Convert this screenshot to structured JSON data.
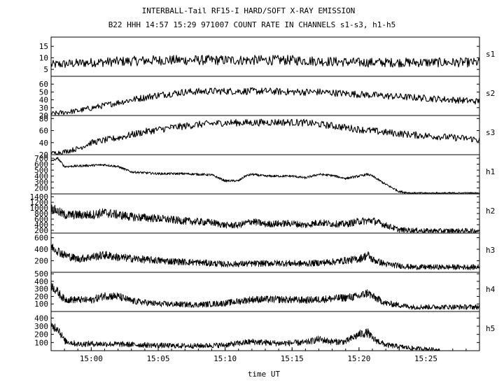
{
  "chart_data": {
    "type": "line",
    "title": "INTERBALL-Tail RF15-I HARD/SOFT X-RAY EMISSION",
    "subtitle": "B22 HHH 14:57 15:29 971007  COUNT RATE IN CHANNELS s1-s3, h1-h5",
    "xlabel": "time UT",
    "x_ticks": [
      "15:00",
      "15:05",
      "15:10",
      "15:15",
      "15:20",
      "15:25"
    ],
    "x_range": [
      "14:57",
      "15:29"
    ],
    "grid": false,
    "legend": "none",
    "panels": [
      {
        "name": "s1",
        "ylim": [
          2,
          19
        ],
        "yticks": [
          "5",
          "10",
          "15"
        ],
        "points": [
          [
            "14:57",
            7
          ],
          [
            "15:00",
            8
          ],
          [
            "15:05",
            9
          ],
          [
            "15:10",
            9
          ],
          [
            "15:15",
            9
          ],
          [
            "15:20",
            8
          ],
          [
            "15:25",
            8
          ],
          [
            "15:29",
            8
          ]
        ]
      },
      {
        "name": "s2",
        "ylim": [
          20,
          70
        ],
        "yticks": [
          "20",
          "30",
          "40",
          "50",
          "60"
        ],
        "points": [
          [
            "14:57",
            22
          ],
          [
            "14:59",
            26
          ],
          [
            "15:01",
            33
          ],
          [
            "15:03",
            40
          ],
          [
            "15:05",
            46
          ],
          [
            "15:07",
            50
          ],
          [
            "15:09",
            51
          ],
          [
            "15:11",
            51
          ],
          [
            "15:13",
            51
          ],
          [
            "15:15",
            50
          ],
          [
            "15:17",
            50
          ],
          [
            "15:19",
            48
          ],
          [
            "15:21",
            46
          ],
          [
            "15:23",
            44
          ],
          [
            "15:25",
            42
          ],
          [
            "15:27",
            40
          ],
          [
            "15:29",
            38
          ]
        ]
      },
      {
        "name": "s3",
        "ylim": [
          20,
          85
        ],
        "yticks": [
          "20",
          "40",
          "60",
          "80"
        ],
        "points": [
          [
            "14:57",
            22
          ],
          [
            "14:58",
            25
          ],
          [
            "14:59",
            30
          ],
          [
            "15:00",
            40
          ],
          [
            "15:02",
            48
          ],
          [
            "15:04",
            58
          ],
          [
            "15:06",
            65
          ],
          [
            "15:08",
            70
          ],
          [
            "15:10",
            73
          ],
          [
            "15:12",
            73
          ],
          [
            "15:14",
            74
          ],
          [
            "15:16",
            73
          ],
          [
            "15:18",
            68
          ],
          [
            "15:20",
            62
          ],
          [
            "15:22",
            57
          ],
          [
            "15:24",
            53
          ],
          [
            "15:26",
            50
          ],
          [
            "15:28",
            47
          ],
          [
            "15:29",
            45
          ]
        ]
      },
      {
        "name": "h1",
        "ylim": [
          100,
          760
        ],
        "yticks": [
          "200",
          "300",
          "400",
          "500",
          "600",
          "700"
        ],
        "points": [
          [
            "14:57",
            650
          ],
          [
            "14:57:30",
            700
          ],
          [
            "14:58",
            560
          ],
          [
            "14:59",
            570
          ],
          [
            "15:00",
            580
          ],
          [
            "15:01",
            590
          ],
          [
            "15:02",
            560
          ],
          [
            "15:03",
            470
          ],
          [
            "15:05",
            440
          ],
          [
            "15:07",
            440
          ],
          [
            "15:09",
            420
          ],
          [
            "15:10",
            320
          ],
          [
            "15:11",
            320
          ],
          [
            "15:11:30",
            400
          ],
          [
            "15:12",
            430
          ],
          [
            "15:13",
            400
          ],
          [
            "15:15",
            400
          ],
          [
            "15:16",
            370
          ],
          [
            "15:17",
            430
          ],
          [
            "15:18",
            410
          ],
          [
            "15:19",
            360
          ],
          [
            "15:20",
            400
          ],
          [
            "15:20:40",
            430
          ],
          [
            "15:21",
            400
          ],
          [
            "15:22",
            260
          ],
          [
            "15:23",
            140
          ],
          [
            "15:24",
            110
          ],
          [
            "15:26",
            110
          ],
          [
            "15:29",
            110
          ]
        ]
      },
      {
        "name": "h2",
        "ylim": [
          100,
          1500
        ],
        "yticks": [
          "200",
          "400",
          "600",
          "800",
          "1000",
          "1200",
          "1400"
        ],
        "points": [
          [
            "14:57",
            1000
          ],
          [
            "14:58",
            750
          ],
          [
            "15:00",
            750
          ],
          [
            "15:01",
            830
          ],
          [
            "15:03",
            680
          ],
          [
            "15:05",
            620
          ],
          [
            "15:07",
            530
          ],
          [
            "15:09",
            480
          ],
          [
            "15:10",
            380
          ],
          [
            "15:11",
            380
          ],
          [
            "15:12",
            520
          ],
          [
            "15:13",
            420
          ],
          [
            "15:15",
            450
          ],
          [
            "15:16",
            380
          ],
          [
            "15:17",
            480
          ],
          [
            "15:18",
            430
          ],
          [
            "15:19",
            420
          ],
          [
            "15:20",
            520
          ],
          [
            "15:21",
            550
          ],
          [
            "15:22",
            380
          ],
          [
            "15:23",
            220
          ],
          [
            "15:25",
            180
          ],
          [
            "15:29",
            180
          ]
        ]
      },
      {
        "name": "h3",
        "ylim": [
          0,
          680
        ],
        "yticks": [
          "200",
          "400",
          "600"
        ],
        "points": [
          [
            "14:57",
            450
          ],
          [
            "14:58",
            300
          ],
          [
            "14:59",
            230
          ],
          [
            "15:01",
            300
          ],
          [
            "15:02",
            260
          ],
          [
            "15:04",
            220
          ],
          [
            "15:06",
            190
          ],
          [
            "15:08",
            170
          ],
          [
            "15:10",
            140
          ],
          [
            "15:12",
            150
          ],
          [
            "15:14",
            160
          ],
          [
            "15:16",
            150
          ],
          [
            "15:18",
            180
          ],
          [
            "15:20",
            230
          ],
          [
            "15:20:40",
            300
          ],
          [
            "15:21",
            220
          ],
          [
            "15:22",
            140
          ],
          [
            "15:24",
            90
          ],
          [
            "15:26",
            90
          ],
          [
            "15:29",
            90
          ]
        ]
      },
      {
        "name": "h4",
        "ylim": [
          0,
          520
        ],
        "yticks": [
          "100",
          "200",
          "300",
          "400",
          "500"
        ],
        "points": [
          [
            "14:57",
            350
          ],
          [
            "14:58",
            160
          ],
          [
            "15:00",
            150
          ],
          [
            "15:01",
            210
          ],
          [
            "15:02",
            200
          ],
          [
            "15:03",
            140
          ],
          [
            "15:05",
            100
          ],
          [
            "15:08",
            90
          ],
          [
            "15:10",
            110
          ],
          [
            "15:12",
            160
          ],
          [
            "15:14",
            160
          ],
          [
            "15:16",
            150
          ],
          [
            "15:18",
            170
          ],
          [
            "15:20",
            200
          ],
          [
            "15:20:40",
            250
          ],
          [
            "15:21",
            200
          ],
          [
            "15:22",
            110
          ],
          [
            "15:24",
            60
          ],
          [
            "15:26",
            60
          ],
          [
            "15:29",
            60
          ]
        ]
      },
      {
        "name": "h5",
        "ylim": [
          0,
          480
        ],
        "yticks": [
          "100",
          "200",
          "300",
          "400"
        ],
        "points": [
          [
            "14:57",
            300
          ],
          [
            "14:57:30",
            280
          ],
          [
            "14:58",
            120
          ],
          [
            "14:59",
            80
          ],
          [
            "15:00",
            85
          ],
          [
            "15:02",
            80
          ],
          [
            "15:04",
            70
          ],
          [
            "15:06",
            60
          ],
          [
            "15:08",
            60
          ],
          [
            "15:10",
            70
          ],
          [
            "15:12",
            110
          ],
          [
            "15:14",
            90
          ],
          [
            "15:16",
            100
          ],
          [
            "15:17",
            140
          ],
          [
            "15:18",
            110
          ],
          [
            "15:19",
            110
          ],
          [
            "15:20",
            200
          ],
          [
            "15:20:40",
            220
          ],
          [
            "15:21",
            150
          ],
          [
            "15:22",
            70
          ],
          [
            "15:24",
            30
          ],
          [
            "15:25",
            20
          ],
          [
            "15:26",
            10
          ]
        ]
      }
    ]
  }
}
